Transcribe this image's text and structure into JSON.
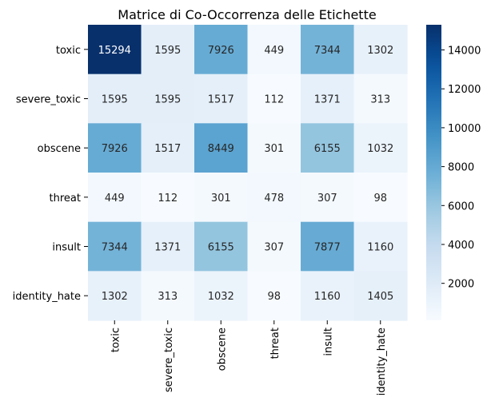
{
  "chart_data": {
    "type": "heatmap",
    "title": "Matrice di Co-Occorrenza delle Etichette",
    "xlabel": "",
    "ylabel": "",
    "x_categories": [
      "toxic",
      "severe_toxic",
      "obscene",
      "threat",
      "insult",
      "identity_hate"
    ],
    "y_categories": [
      "toxic",
      "severe_toxic",
      "obscene",
      "threat",
      "insult",
      "identity_hate"
    ],
    "values": [
      [
        15294,
        1595,
        7926,
        449,
        7344,
        1302
      ],
      [
        1595,
        1595,
        1517,
        112,
        1371,
        313
      ],
      [
        7926,
        1517,
        8449,
        301,
        6155,
        1032
      ],
      [
        449,
        112,
        301,
        478,
        307,
        98
      ],
      [
        7344,
        1371,
        6155,
        307,
        7877,
        1160
      ],
      [
        1302,
        313,
        1032,
        98,
        1160,
        1405
      ]
    ],
    "colorscale": "Blues",
    "vmin": 98,
    "vmax": 15294,
    "colorbar_ticks": [
      2000,
      4000,
      6000,
      8000,
      10000,
      12000,
      14000
    ],
    "annotation_colors": {
      "light": "#ffffff",
      "dark": "#262626"
    }
  }
}
